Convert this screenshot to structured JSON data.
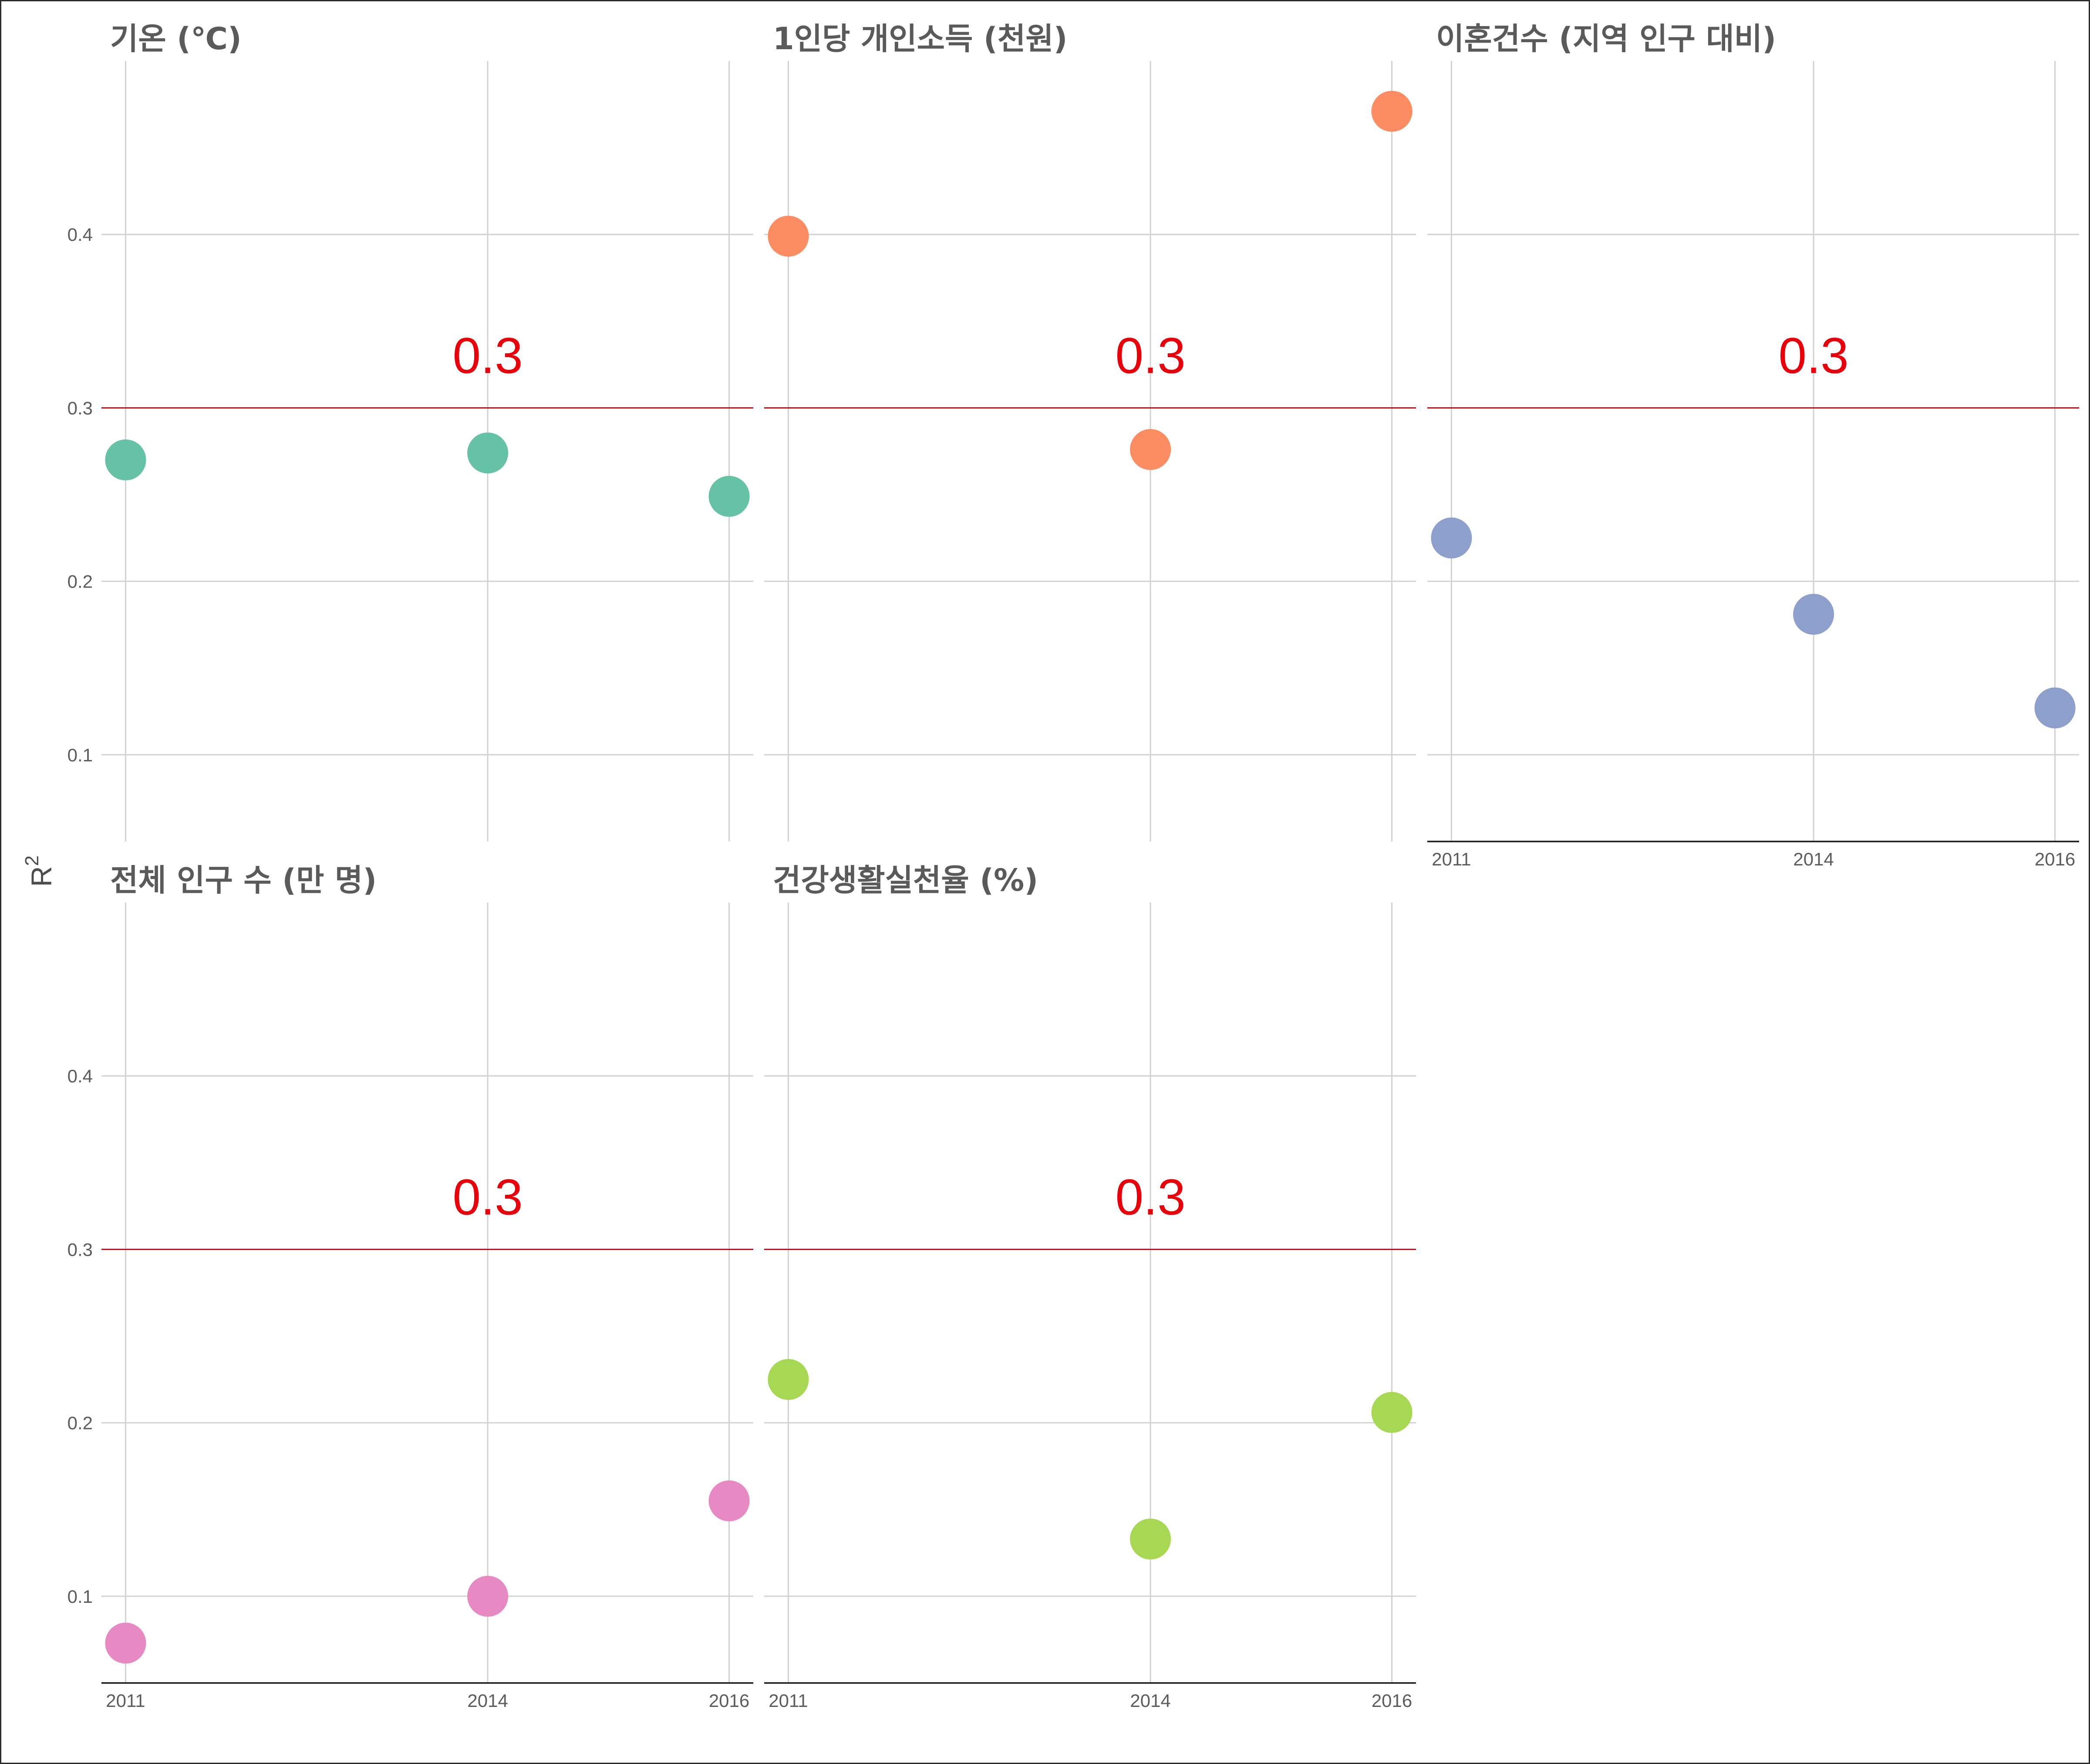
{
  "chart_data": {
    "type": "scatter",
    "layout": "faceted small multiples, 3 columns x 2 rows",
    "ylabel": "R",
    "ylabel_superscript": "2",
    "ylim": [
      0.05,
      0.5
    ],
    "yticks": [
      0.1,
      0.2,
      0.3,
      0.4
    ],
    "ytick_labels": [
      "0.1",
      "0.2",
      "0.3",
      "0.4"
    ],
    "x_categories": [
      2011,
      2014,
      2016
    ],
    "x_tick_labels": [
      "2011",
      "2014",
      "2016"
    ],
    "x_scale": "linear in year",
    "grid": true,
    "reference_line": {
      "y": 0.3,
      "label": "0.3",
      "color": "#e8000b",
      "label_x": 2014
    },
    "facets": [
      {
        "title": "기온 (℃)",
        "color": "#66c2a5",
        "points": [
          {
            "x": 2011,
            "y": 0.27
          },
          {
            "x": 2014,
            "y": 0.274
          },
          {
            "x": 2016,
            "y": 0.249
          }
        ]
      },
      {
        "title": "1인당 개인소득 (천원)",
        "color": "#fc8d62",
        "points": [
          {
            "x": 2011,
            "y": 0.399
          },
          {
            "x": 2014,
            "y": 0.276
          },
          {
            "x": 2016,
            "y": 0.471
          }
        ]
      },
      {
        "title": "이혼건수 (지역 인구 대비)",
        "color": "#8da0cb",
        "points": [
          {
            "x": 2011,
            "y": 0.225
          },
          {
            "x": 2014,
            "y": 0.181
          },
          {
            "x": 2016,
            "y": 0.127
          }
        ]
      },
      {
        "title": "전체 인구 수 (만 명)",
        "color": "#e78ac3",
        "points": [
          {
            "x": 2011,
            "y": 0.073
          },
          {
            "x": 2014,
            "y": 0.1
          },
          {
            "x": 2016,
            "y": 0.155
          }
        ]
      },
      {
        "title": "건강생활실천율 (%)",
        "color": "#a6d854",
        "points": [
          {
            "x": 2011,
            "y": 0.225
          },
          {
            "x": 2014,
            "y": 0.133
          },
          {
            "x": 2016,
            "y": 0.206
          }
        ]
      }
    ]
  }
}
